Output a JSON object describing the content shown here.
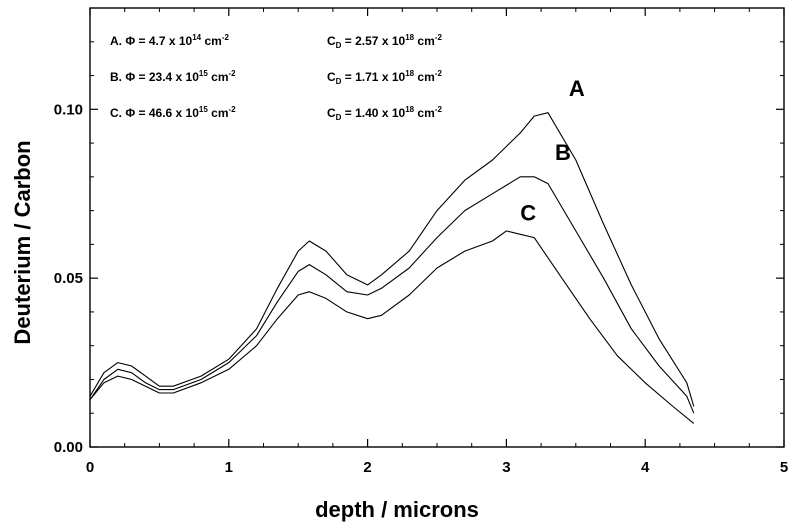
{
  "chart_data": {
    "type": "line",
    "xlabel": "depth / microns",
    "ylabel": "Deuterium / Carbon",
    "xlim": [
      0,
      5
    ],
    "ylim": [
      0,
      0.13
    ],
    "x_ticks": [
      "0",
      "1",
      "2",
      "3",
      "4",
      "5"
    ],
    "y_ticks": [
      "0.00",
      "0.05",
      "0.10"
    ],
    "series": [
      {
        "name": "A",
        "x": [
          0,
          0.1,
          0.2,
          0.3,
          0.4,
          0.5,
          0.6,
          0.8,
          1.0,
          1.2,
          1.35,
          1.5,
          1.58,
          1.7,
          1.85,
          2.0,
          2.1,
          2.3,
          2.5,
          2.7,
          2.9,
          3.1,
          3.2,
          3.3,
          3.5,
          3.7,
          3.9,
          4.1,
          4.3,
          4.35
        ],
        "y": [
          0.015,
          0.022,
          0.025,
          0.024,
          0.021,
          0.018,
          0.018,
          0.021,
          0.026,
          0.035,
          0.047,
          0.058,
          0.061,
          0.058,
          0.051,
          0.048,
          0.051,
          0.058,
          0.07,
          0.079,
          0.085,
          0.093,
          0.098,
          0.099,
          0.085,
          0.066,
          0.048,
          0.032,
          0.019,
          0.012
        ]
      },
      {
        "name": "B",
        "x": [
          0,
          0.1,
          0.2,
          0.3,
          0.4,
          0.5,
          0.6,
          0.8,
          1.0,
          1.2,
          1.35,
          1.5,
          1.58,
          1.7,
          1.85,
          2.0,
          2.1,
          2.3,
          2.5,
          2.7,
          2.9,
          3.1,
          3.2,
          3.3,
          3.5,
          3.7,
          3.9,
          4.1,
          4.3,
          4.35
        ],
        "y": [
          0.014,
          0.02,
          0.023,
          0.022,
          0.019,
          0.017,
          0.017,
          0.02,
          0.025,
          0.033,
          0.043,
          0.052,
          0.054,
          0.051,
          0.046,
          0.045,
          0.047,
          0.053,
          0.062,
          0.07,
          0.075,
          0.08,
          0.08,
          0.078,
          0.064,
          0.05,
          0.035,
          0.024,
          0.015,
          0.01
        ]
      },
      {
        "name": "C",
        "x": [
          0,
          0.1,
          0.2,
          0.3,
          0.4,
          0.5,
          0.6,
          0.8,
          1.0,
          1.2,
          1.35,
          1.5,
          1.58,
          1.7,
          1.85,
          2.0,
          2.1,
          2.3,
          2.5,
          2.7,
          2.9,
          3.0,
          3.1,
          3.2,
          3.4,
          3.6,
          3.8,
          4.0,
          4.2,
          4.35
        ],
        "y": [
          0.014,
          0.019,
          0.021,
          0.02,
          0.018,
          0.016,
          0.016,
          0.019,
          0.023,
          0.03,
          0.038,
          0.045,
          0.046,
          0.044,
          0.04,
          0.038,
          0.039,
          0.045,
          0.053,
          0.058,
          0.061,
          0.064,
          0.063,
          0.062,
          0.05,
          0.038,
          0.027,
          0.019,
          0.012,
          0.007
        ]
      }
    ],
    "annotations": [
      {
        "label": "A. Φ = 4.7 x 10",
        "exp": "14",
        "unit": " cm",
        "unit_exp": "-2",
        "cd_label": "C",
        "cd_sub": "D",
        "cd_value": " = 2.57 x 10",
        "cd_exp": "18",
        "cd_unit": " cm",
        "cd_unit_exp": "-2"
      },
      {
        "label": "B. Φ = 23.4 x 10",
        "exp": "15",
        "unit": " cm",
        "unit_exp": "-2",
        "cd_label": "C",
        "cd_sub": "D",
        "cd_value": " = 1.71 x 10",
        "cd_exp": "18",
        "cd_unit": " cm",
        "cd_unit_exp": "-2"
      },
      {
        "label": "C. Φ = 46.6 x 10",
        "exp": "15",
        "unit": " cm",
        "unit_exp": "-2",
        "cd_label": "C",
        "cd_sub": "D",
        "cd_value": " = 1.40 x 10",
        "cd_exp": "18",
        "cd_unit": " cm",
        "cd_unit_exp": "-2"
      }
    ],
    "series_labels": [
      "A",
      "B",
      "C"
    ],
    "grid": false,
    "legend": "none"
  }
}
